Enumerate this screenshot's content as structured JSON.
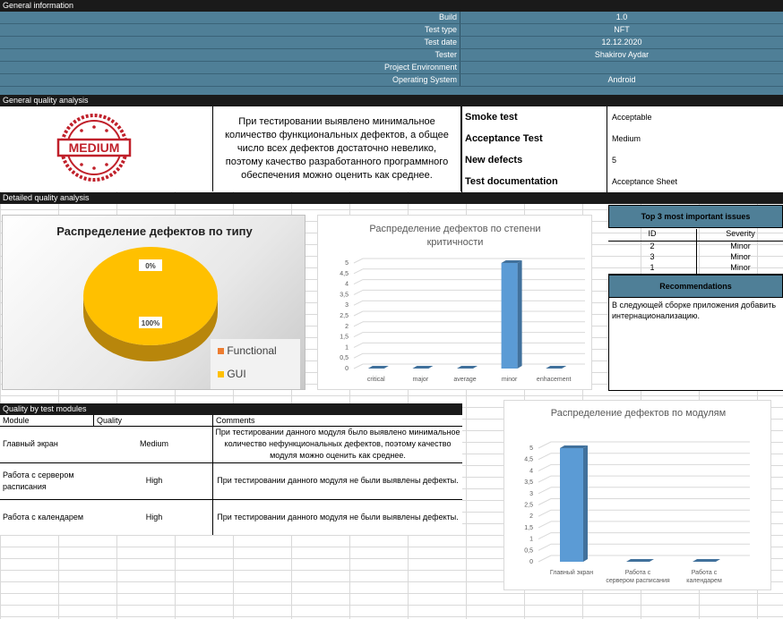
{
  "general": {
    "title": "General information",
    "rows": [
      {
        "label": "Build",
        "value": "1.0"
      },
      {
        "label": "Test type",
        "value": "NFT"
      },
      {
        "label": "Test date",
        "value": "12.12.2020"
      },
      {
        "label": "Tester",
        "value": "Shakirov Aydar"
      },
      {
        "label": "Project Environment",
        "value": ""
      },
      {
        "label": "Operating System",
        "value": "Android"
      }
    ]
  },
  "quality": {
    "title": "General quality analysis",
    "stamp_text": "MEDIUM",
    "summary": "При тестировании выявлено минимальное количество функциональных дефектов, а общее число всех дефектов достаточно невелико, поэтому качество разработанного программного обеспечения можно оценить как среднее.",
    "rows": [
      {
        "label": "Smoke test",
        "value": "Acceptable"
      },
      {
        "label": "Acceptance Test",
        "value": "Medium"
      },
      {
        "label": "New defects",
        "value": "5"
      },
      {
        "label": "Test documentation",
        "value": "Acceptance Sheet"
      }
    ],
    "stamp_color": "#c0202a"
  },
  "detailed": {
    "title": "Detailed quality analysis"
  },
  "chart_data": [
    {
      "type": "pie",
      "title": "Распределение дефектов по типу",
      "categories": [
        "Functional",
        "GUI"
      ],
      "values": [
        0,
        100
      ],
      "data_labels": [
        "0%",
        "100%"
      ],
      "colors": [
        "#ed7d31",
        "#ffc000"
      ],
      "legend": "bottom-right"
    },
    {
      "type": "bar",
      "title": "Распределение дефектов по степени критичности",
      "categories": [
        "critical",
        "major",
        "average",
        "minor",
        "enhacement"
      ],
      "values": [
        0,
        0,
        0,
        5,
        0
      ],
      "ylim": [
        0,
        5
      ],
      "yticks": [
        "0",
        "0,5",
        "1",
        "1,5",
        "2",
        "2,5",
        "3",
        "3,5",
        "4",
        "4,5",
        "5"
      ],
      "grid": true,
      "color": "#5b9bd5"
    },
    {
      "type": "bar",
      "title": "Распределение дефектов по модулям",
      "categories": [
        "Главный экран",
        "Работа с сервером расписания",
        "Работа с календарем"
      ],
      "values": [
        5,
        0,
        0
      ],
      "ylim": [
        0,
        5
      ],
      "yticks": [
        "0",
        "0,5",
        "1",
        "1,5",
        "2",
        "2,5",
        "3",
        "3,5",
        "4",
        "4,5",
        "5"
      ],
      "grid": true,
      "color": "#5b9bd5"
    }
  ],
  "issues": {
    "title": "Top 3 most important issues",
    "headers": [
      "ID",
      "Severity"
    ],
    "rows": [
      {
        "id": "2",
        "severity": "Minor"
      },
      {
        "id": "3",
        "severity": "Minor"
      },
      {
        "id": "1",
        "severity": "Minor"
      }
    ]
  },
  "recommendations": {
    "title": "Recommendations",
    "text": "В следующей сборке приложения добавить интернационализацию."
  },
  "modules": {
    "title": "Quality by test modules",
    "headers": [
      "Module",
      "Quality",
      "Comments"
    ],
    "rows": [
      {
        "module": "Главный экран",
        "quality": "Medium",
        "comment": "При тестировании данного модуля было выявлено минимальное количество нефункциональных дефектов, поэтому качество модуля можно оценить как среднее."
      },
      {
        "module": "Работа с сервером расписания",
        "quality": "High",
        "comment": "При тестировании данного модуля не были выявлены дефекты."
      },
      {
        "module": "Работа с календарем",
        "quality": "High",
        "comment": "При тестировании данного модуля не были выявлены дефекты."
      }
    ]
  },
  "colors": {
    "header_bg": "#1a1a1a",
    "blue_row": "#4f7f97",
    "issues_header": "#4f7f97"
  }
}
